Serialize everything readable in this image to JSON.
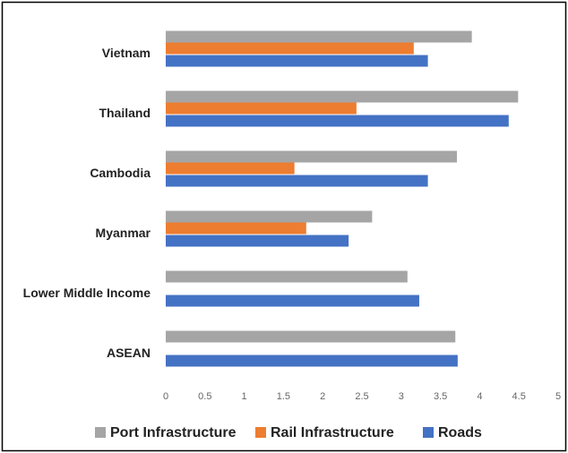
{
  "chart_data": {
    "type": "bar",
    "orientation": "horizontal",
    "categories": [
      "Vietnam",
      "Thailand",
      "Cambodia",
      "Myanmar",
      "Lower Middle Income",
      "ASEAN"
    ],
    "series": [
      {
        "name": "Port Infrastructure",
        "color": "#a5a5a5",
        "values": [
          3.9,
          4.49,
          3.71,
          2.63,
          3.08,
          3.69
        ]
      },
      {
        "name": "Rail Infrastructure",
        "color": "#ed7d31",
        "values": [
          3.16,
          2.43,
          1.64,
          1.79,
          null,
          null
        ]
      },
      {
        "name": "Roads",
        "color": "#4472c4",
        "values": [
          3.34,
          4.37,
          3.34,
          2.33,
          3.23,
          3.72
        ]
      }
    ],
    "xlim": [
      0,
      5
    ],
    "xticks": [
      0,
      0.5,
      1,
      1.5,
      2,
      2.5,
      3,
      3.5,
      4,
      4.5,
      5
    ],
    "grid": false,
    "legend": "bottom"
  }
}
